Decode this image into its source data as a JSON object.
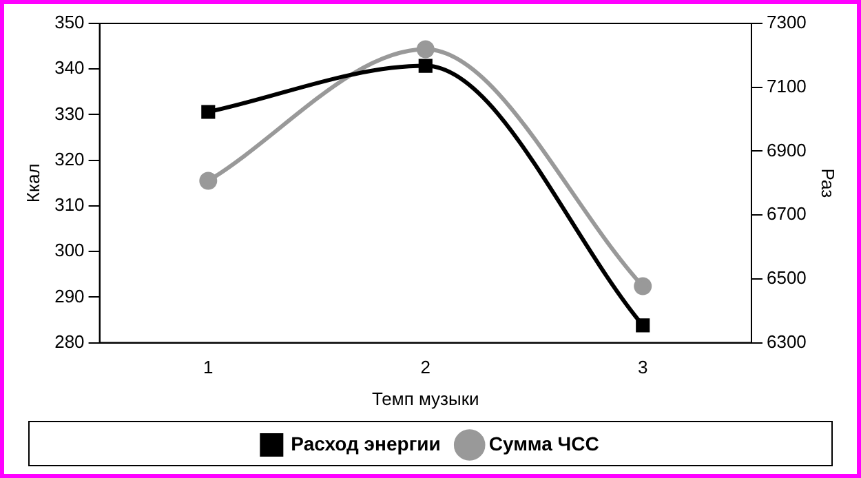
{
  "chart_data": {
    "type": "line",
    "categories": [
      "1",
      "2",
      "3"
    ],
    "xlabel": "Темп музыки",
    "ylabel": "Ккал",
    "y2label": "Раз",
    "ylim": [
      280,
      350
    ],
    "yticks": [
      280,
      290,
      300,
      310,
      320,
      330,
      340,
      350
    ],
    "y2lim": [
      6300,
      7300
    ],
    "y2ticks": [
      6300,
      6500,
      6700,
      6900,
      7100,
      7300
    ],
    "grid": false,
    "legend": "bottom",
    "series": [
      {
        "name": "Расход энергии",
        "color": "#000000",
        "marker": "square",
        "values": [
          330.6,
          340.7,
          283.8
        ]
      },
      {
        "name": "Сумма ЧСС",
        "color": "#999999",
        "marker": "circle",
        "axis": "y2",
        "values": [
          6807,
          7219,
          6477
        ]
      }
    ]
  }
}
